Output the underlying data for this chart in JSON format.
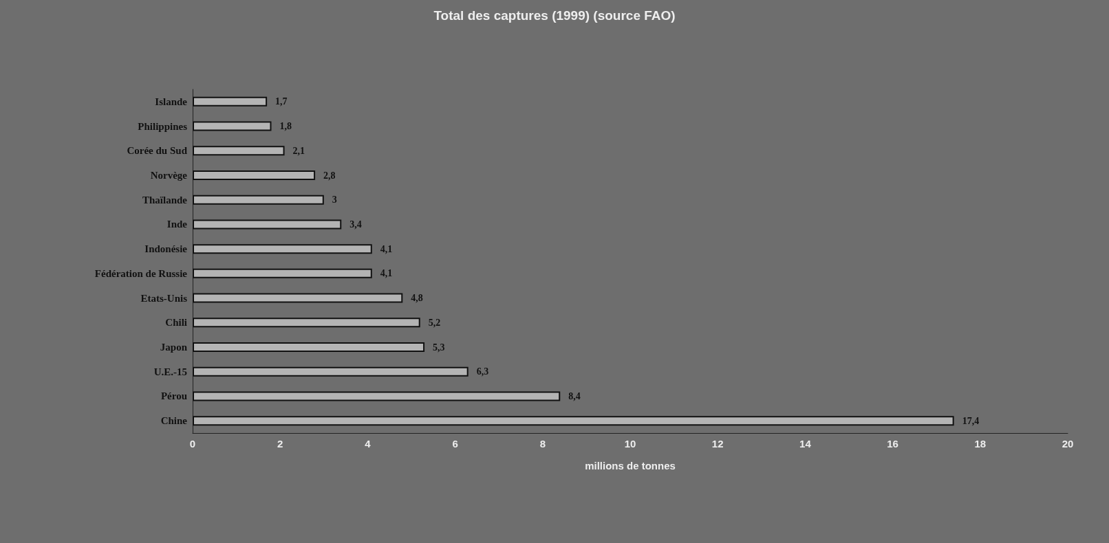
{
  "chart_data": {
    "type": "bar",
    "orientation": "horizontal",
    "title": "Total des captures (1999) (source FAO)",
    "xlabel": "millions de tonnes",
    "categories": [
      "Islande",
      "Philippines",
      "Corée du Sud",
      "Norvège",
      "Thaïlande",
      "Inde",
      "Indonésie",
      "Fédération de Russie",
      "Etats-Unis",
      "Chili",
      "Japon",
      "U.E.-15",
      "Pérou",
      "Chine"
    ],
    "values": [
      1.7,
      1.8,
      2.1,
      2.8,
      3,
      3.4,
      4.1,
      4.1,
      4.8,
      5.2,
      5.3,
      6.3,
      8.4,
      17.4
    ],
    "value_labels": [
      "1,7",
      "1,8",
      "2,1",
      "2,8",
      "3",
      "3,4",
      "4,1",
      "4,1",
      "4,8",
      "5,2",
      "5,3",
      "6,3",
      "8,4",
      "17,4"
    ],
    "color": "#b4b4b4",
    "xlim": [
      0,
      20
    ],
    "xticks": [
      0,
      2,
      4,
      6,
      8,
      10,
      12,
      14,
      16,
      18,
      20
    ]
  }
}
